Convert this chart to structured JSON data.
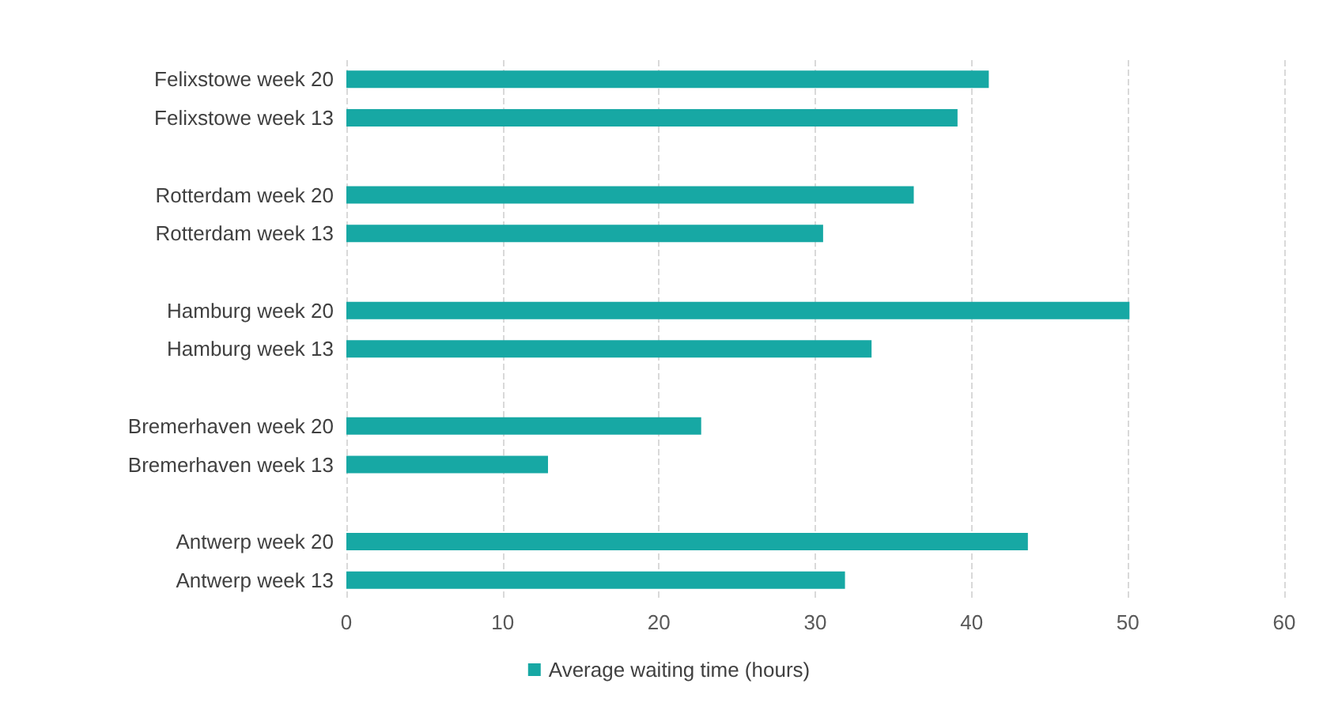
{
  "chart_data": {
    "type": "bar",
    "orientation": "horizontal",
    "categories": [
      "Felixstowe week 20",
      "Felixstowe week 13",
      null,
      "Rotterdam week 20",
      "Rotterdam week 13",
      null,
      "Hamburg week 20",
      "Hamburg week 13",
      null,
      "Bremerhaven week 20",
      "Bremerhaven week 13",
      null,
      "Antwerp week 20",
      "Antwerp week 13"
    ],
    "series": [
      {
        "name": "Average waiting time (hours)",
        "color": "#17a8a4",
        "values": [
          41.1,
          39.1,
          null,
          36.3,
          30.5,
          null,
          50.1,
          33.6,
          null,
          22.7,
          12.9,
          null,
          43.6,
          31.9
        ]
      }
    ],
    "xlim": [
      0,
      60
    ],
    "xticks": [
      0,
      10,
      20,
      30,
      40,
      50,
      60
    ],
    "grid": "x",
    "legend": "bottom"
  }
}
